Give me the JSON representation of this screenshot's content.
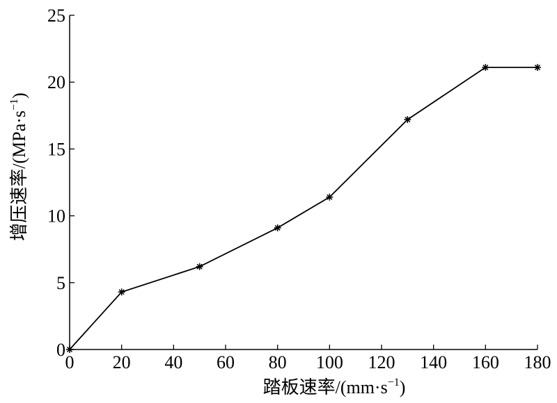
{
  "chart_data": {
    "type": "line",
    "xlabel": [
      "踏板速率/(mm·s",
      "−1",
      ")"
    ],
    "ylabel": [
      "增压速率/(MPa·s",
      "−1",
      ")"
    ],
    "x": [
      0,
      20,
      50,
      80,
      100,
      130,
      160,
      180
    ],
    "series": [
      {
        "color": "#000000",
        "values": [
          0,
          4.3,
          6.2,
          9.1,
          11.4,
          17.2,
          21.1,
          21.1
        ]
      }
    ],
    "xlim": [
      0,
      180
    ],
    "xticks": [
      0,
      20,
      40,
      60,
      80,
      100,
      120,
      140,
      160,
      180
    ],
    "ylim": [
      0,
      25
    ],
    "yticks": [
      0,
      5,
      10,
      15,
      20,
      25
    ],
    "grid": false
  }
}
